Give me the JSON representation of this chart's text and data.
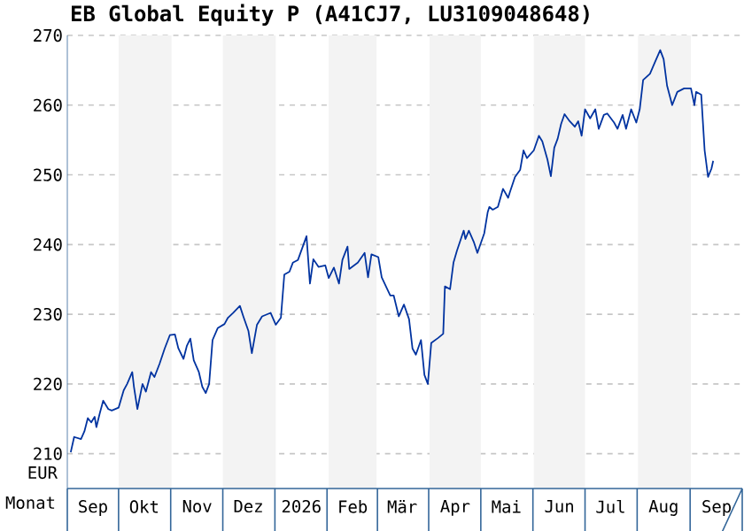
{
  "chart_data": {
    "type": "line",
    "title": "EB Global Equity P (A41CJ7, LU3109048648)",
    "xlabel": "Monat",
    "ylabel": "EUR",
    "color": "#0033a0",
    "grid": "y",
    "x": [
      "2025-09-03",
      "2025-09-05",
      "2025-09-09",
      "2025-09-11",
      "2025-09-13",
      "2025-09-15",
      "2025-09-17",
      "2025-09-18",
      "2025-09-20",
      "2025-09-22",
      "2025-09-25",
      "2025-09-27",
      "2025-10-01",
      "2025-10-04",
      "2025-10-06",
      "2025-10-09",
      "2025-10-10",
      "2025-10-12",
      "2025-10-15",
      "2025-10-17",
      "2025-10-20",
      "2025-10-22",
      "2025-10-25",
      "2025-10-28",
      "2025-10-31",
      "2025-11-03",
      "2025-11-05",
      "2025-11-08",
      "2025-11-10",
      "2025-11-12",
      "2025-11-14",
      "2025-11-17",
      "2025-11-19",
      "2025-11-21",
      "2025-11-23",
      "2025-11-25",
      "2025-11-28",
      "2025-12-02",
      "2025-12-04",
      "2025-12-07",
      "2025-12-11",
      "2025-12-13",
      "2025-12-16",
      "2025-12-18",
      "2025-12-21",
      "2025-12-24",
      "2025-12-29",
      "2026-01-01",
      "2026-01-04",
      "2026-01-06",
      "2026-01-09",
      "2026-01-11",
      "2026-01-14",
      "2026-01-19",
      "2026-01-21",
      "2026-01-23",
      "2026-01-26",
      "2026-01-30",
      "2026-02-01",
      "2026-02-04",
      "2026-02-07",
      "2026-02-09",
      "2026-02-12",
      "2026-02-13",
      "2026-02-18",
      "2026-02-22",
      "2026-02-24",
      "2026-02-26",
      "2026-03-02",
      "2026-03-04",
      "2026-03-09",
      "2026-03-11",
      "2026-03-14",
      "2026-03-17",
      "2026-03-20",
      "2026-03-22",
      "2026-03-24",
      "2026-03-27",
      "2026-03-29",
      "2026-03-31",
      "2026-04-02",
      "2026-04-06",
      "2026-04-09",
      "2026-04-10",
      "2026-04-13",
      "2026-04-15",
      "2026-04-17",
      "2026-04-21",
      "2026-04-22",
      "2026-04-24",
      "2026-04-27",
      "2026-04-29",
      "2026-05-03",
      "2026-05-05",
      "2026-05-06",
      "2026-05-08",
      "2026-05-11",
      "2026-05-14",
      "2026-05-17",
      "2026-05-18",
      "2026-05-21",
      "2026-05-24",
      "2026-05-26",
      "2026-05-28",
      "2026-06-01",
      "2026-06-04",
      "2026-06-06",
      "2026-06-09",
      "2026-06-11",
      "2026-06-13",
      "2026-06-15",
      "2026-06-17",
      "2026-06-19",
      "2026-06-22",
      "2026-06-25",
      "2026-06-27",
      "2026-06-29",
      "2026-07-01",
      "2026-07-04",
      "2026-07-07",
      "2026-07-09",
      "2026-07-12",
      "2026-07-14",
      "2026-07-18",
      "2026-07-20",
      "2026-07-23",
      "2026-07-25",
      "2026-07-28",
      "2026-07-31",
      "2026-08-02",
      "2026-08-04",
      "2026-08-08",
      "2026-08-11",
      "2026-08-14",
      "2026-08-16",
      "2026-08-18",
      "2026-08-21",
      "2026-08-24",
      "2026-08-28",
      "2026-09-01",
      "2026-09-03",
      "2026-09-04",
      "2026-09-07",
      "2026-09-09",
      "2026-09-11",
      "2026-09-13",
      "2026-09-14"
    ],
    "values": [
      210.2,
      212.4,
      212.1,
      213.2,
      215.1,
      214.5,
      215.3,
      213.8,
      215.8,
      217.6,
      216.4,
      216.2,
      216.6,
      219.1,
      220.0,
      221.7,
      219.6,
      216.4,
      220.0,
      218.9,
      221.7,
      221.0,
      222.9,
      225.1,
      227.0,
      227.1,
      225.1,
      223.6,
      225.5,
      226.5,
      223.4,
      221.7,
      219.6,
      218.7,
      220.0,
      226.3,
      228.0,
      228.6,
      229.5,
      230.2,
      231.2,
      229.7,
      227.6,
      224.4,
      228.5,
      229.7,
      230.2,
      228.5,
      229.5,
      235.7,
      236.1,
      237.4,
      237.8,
      241.2,
      234.4,
      237.9,
      236.8,
      237.0,
      235.2,
      236.7,
      234.4,
      237.8,
      239.7,
      236.5,
      237.4,
      238.8,
      235.3,
      238.6,
      238.2,
      235.3,
      232.7,
      232.7,
      229.7,
      231.4,
      229.3,
      225.1,
      224.2,
      226.3,
      221.3,
      220.0,
      225.9,
      226.6,
      227.2,
      234.0,
      233.6,
      237.4,
      239.1,
      242.0,
      240.8,
      242.0,
      240.3,
      238.8,
      241.6,
      244.6,
      245.4,
      245.0,
      245.4,
      248.0,
      246.7,
      247.5,
      249.7,
      250.7,
      253.5,
      252.4,
      253.5,
      255.6,
      254.8,
      252.2,
      249.8,
      253.9,
      255.2,
      257.3,
      258.7,
      257.7,
      256.9,
      257.7,
      255.6,
      259.4,
      258.1,
      259.4,
      256.6,
      258.6,
      258.8,
      257.5,
      256.6,
      258.6,
      256.6,
      259.4,
      257.5,
      259.4,
      263.6,
      264.5,
      266.2,
      267.9,
      266.6,
      262.8,
      260.0,
      261.9,
      262.4,
      262.4,
      260.0,
      261.9,
      261.5,
      253.5,
      249.7,
      250.9,
      252.0
    ],
    "xlim": [
      "2025-09-01",
      "2026-10-01"
    ],
    "ylim": [
      205,
      270
    ],
    "yticks": [
      210,
      220,
      230,
      240,
      250,
      260,
      270
    ],
    "xticks": [
      {
        "value": "2025-09-16",
        "label": "Sep"
      },
      {
        "value": "2025-10-16",
        "label": "Okt"
      },
      {
        "value": "2025-11-16",
        "label": "Nov"
      },
      {
        "value": "2025-12-16",
        "label": "Dez"
      },
      {
        "value": "2026-01-16",
        "label": "2026"
      },
      {
        "value": "2026-02-15",
        "label": "Feb"
      },
      {
        "value": "2026-03-16",
        "label": "Mär"
      },
      {
        "value": "2026-04-16",
        "label": "Apr"
      },
      {
        "value": "2026-05-16",
        "label": "Mai"
      },
      {
        "value": "2026-06-16",
        "label": "Jun"
      },
      {
        "value": "2026-07-16",
        "label": "Jul"
      },
      {
        "value": "2026-08-16",
        "label": "Aug"
      },
      {
        "value": "2026-09-16",
        "label": "Sep"
      }
    ],
    "bands": [
      {
        "axis": "x",
        "from": "2025-10-01",
        "to": "2025-11-01",
        "color": "#f3f3f3"
      },
      {
        "axis": "x",
        "from": "2025-12-01",
        "to": "2026-01-01",
        "color": "#f3f3f3"
      },
      {
        "axis": "x",
        "from": "2026-02-01",
        "to": "2026-03-01",
        "color": "#f3f3f3"
      },
      {
        "axis": "x",
        "from": "2026-04-01",
        "to": "2026-05-01",
        "color": "#f3f3f3"
      },
      {
        "axis": "x",
        "from": "2026-06-01",
        "to": "2026-07-01",
        "color": "#f3f3f3"
      },
      {
        "axis": "x",
        "from": "2026-08-01",
        "to": "2026-09-01",
        "color": "#f3f3f3"
      }
    ]
  }
}
